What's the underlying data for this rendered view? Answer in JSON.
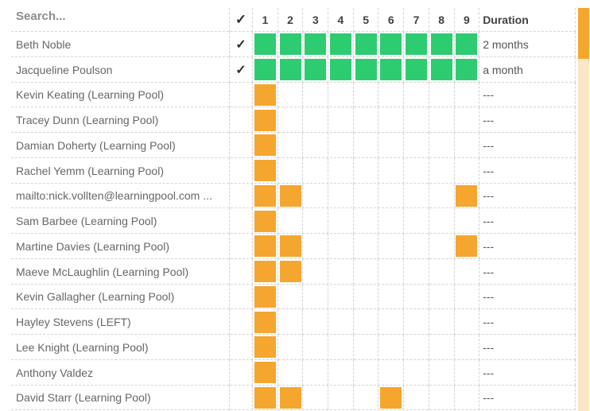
{
  "colors": {
    "green": "#2ecc71",
    "orange": "#f5a62e",
    "scrollbar_track": "#fbe7c6",
    "scrollbar_thumb": "#f5a62e",
    "grid_line": "#d3d3d3"
  },
  "table": {
    "search_placeholder": "Search...",
    "check_glyph": "✓",
    "columns": [
      "1",
      "2",
      "3",
      "4",
      "5",
      "6",
      "7",
      "8",
      "9"
    ],
    "duration_header": "Duration",
    "rows": [
      {
        "name": "Beth Noble",
        "checked": true,
        "square_color": "green",
        "square_cols": [
          1,
          2,
          3,
          4,
          5,
          6,
          7,
          8,
          9
        ],
        "duration": "2 months"
      },
      {
        "name": "Jacqueline Poulson",
        "checked": true,
        "square_color": "green",
        "square_cols": [
          1,
          2,
          3,
          4,
          5,
          6,
          7,
          8,
          9
        ],
        "duration": "a month"
      },
      {
        "name": "Kevin Keating (Learning Pool)",
        "checked": false,
        "square_color": "orange",
        "square_cols": [
          1
        ],
        "duration": "---"
      },
      {
        "name": "Tracey Dunn (Learning Pool)",
        "checked": false,
        "square_color": "orange",
        "square_cols": [
          1
        ],
        "duration": "---"
      },
      {
        "name": "Damian Doherty (Learning Pool)",
        "checked": false,
        "square_color": "orange",
        "square_cols": [
          1
        ],
        "duration": "---"
      },
      {
        "name": "Rachel Yemm (Learning Pool)",
        "checked": false,
        "square_color": "orange",
        "square_cols": [
          1
        ],
        "duration": "---"
      },
      {
        "name": "mailto:nick.vollten@learningpool.com ...",
        "checked": false,
        "square_color": "orange",
        "square_cols": [
          1,
          2,
          9
        ],
        "duration": "---"
      },
      {
        "name": "Sam Barbee (Learning Pool)",
        "checked": false,
        "square_color": "orange",
        "square_cols": [
          1
        ],
        "duration": "---"
      },
      {
        "name": "Martine Davies (Learning Pool)",
        "checked": false,
        "square_color": "orange",
        "square_cols": [
          1,
          2,
          9
        ],
        "duration": "---"
      },
      {
        "name": "Maeve McLaughlin (Learning Pool)",
        "checked": false,
        "square_color": "orange",
        "square_cols": [
          1,
          2
        ],
        "duration": "---"
      },
      {
        "name": "Kevin Gallagher (Learning Pool)",
        "checked": false,
        "square_color": "orange",
        "square_cols": [
          1
        ],
        "duration": "---"
      },
      {
        "name": "Hayley Stevens (LEFT)",
        "checked": false,
        "square_color": "orange",
        "square_cols": [
          1
        ],
        "duration": "---"
      },
      {
        "name": "Lee Knight (Learning Pool)",
        "checked": false,
        "square_color": "orange",
        "square_cols": [
          1
        ],
        "duration": "---"
      },
      {
        "name": "Anthony Valdez",
        "checked": false,
        "square_color": "orange",
        "square_cols": [
          1
        ],
        "duration": "---"
      },
      {
        "name": "David Starr (Learning Pool)",
        "checked": false,
        "square_color": "orange",
        "square_cols": [
          1,
          2,
          6
        ],
        "duration": "---"
      }
    ]
  }
}
